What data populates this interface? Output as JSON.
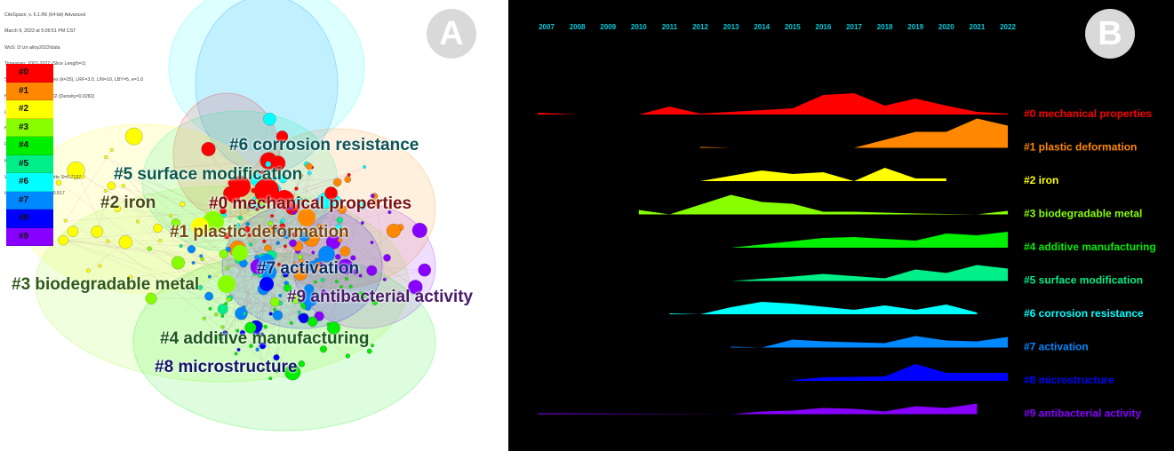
{
  "panel_a": {
    "badge": "A",
    "meta_lines": [
      "CiteSpace, v. 6.1.R6 (64-bit) Advanced",
      "March 9, 2023 at 5:06:51 PM CST",
      "WoS: D:\\zn alloy2022\\data",
      "Timespan: 2007-2022 (Slice Length=1)",
      "Selection Criteria: g-index (k=25), LRF=3.0, L/N=10, LBY=5, e=1.0",
      "Network: N=438, E=2702 (Density=0.0282)",
      "Largest CC: 437 (99%)",
      "Nodes Labeled: 1.0%",
      "Pruning: None",
      "Modularity Q=0.4063",
      "Weighted Mean Silhouette S=0.7137",
      "Harmonic Mean(Q, S)=0.517"
    ],
    "legend": [
      {
        "label": "#0",
        "color": "#ff0000"
      },
      {
        "label": "#1",
        "color": "#ff8800"
      },
      {
        "label": "#2",
        "color": "#ffff00"
      },
      {
        "label": "#3",
        "color": "#88ff00"
      },
      {
        "label": "#4",
        "color": "#00ee00"
      },
      {
        "label": "#5",
        "color": "#00ee88"
      },
      {
        "label": "#6",
        "color": "#00ffff"
      },
      {
        "label": "#7",
        "color": "#0088ff"
      },
      {
        "label": "#8",
        "color": "#0000ff"
      },
      {
        "label": "#9",
        "color": "#8800ff"
      }
    ],
    "cluster_labels": [
      {
        "text": "#6 corrosion resistance",
        "color": "#0b5458"
      },
      {
        "text": "#5 surface modification",
        "color": "#0a5a4a"
      },
      {
        "text": "#2 iron",
        "color": "#4a4a14"
      },
      {
        "text": "#0 mechanical properties",
        "color": "#7a1010"
      },
      {
        "text": "#1 plastic deformation",
        "color": "#7a4a10"
      },
      {
        "text": "#7 activation",
        "color": "#0a2e6a"
      },
      {
        "text": "#3 biodegradable metal",
        "color": "#2e5a14"
      },
      {
        "text": "#9 antibacterial activity",
        "color": "#4a1a6a"
      },
      {
        "text": "#4 additive manufacturing",
        "color": "#1a5a1a"
      },
      {
        "text": "#8 microstructure",
        "color": "#14146a"
      }
    ]
  },
  "panel_b": {
    "badge": "B",
    "years": [
      "2007",
      "2008",
      "2009",
      "2010",
      "2011",
      "2012",
      "2013",
      "2014",
      "2015",
      "2016",
      "2017",
      "2018",
      "2019",
      "2020",
      "2021",
      "2022"
    ],
    "axis_color": "#00ccdd",
    "clusters": [
      {
        "label": "#0 mechanical properties",
        "color": "#ff0000"
      },
      {
        "label": "#1 plastic deformation",
        "color": "#ff8800"
      },
      {
        "label": "#2 iron",
        "color": "#ffff00"
      },
      {
        "label": "#3 biodegradable metal",
        "color": "#88ff00"
      },
      {
        "label": "#4 additive manufacturing",
        "color": "#00ee00"
      },
      {
        "label": "#5 surface modification",
        "color": "#00ee88"
      },
      {
        "label": "#6 corrosion resistance",
        "color": "#00ffff"
      },
      {
        "label": "#7 activation",
        "color": "#0088ff"
      },
      {
        "label": "#8 microstructure",
        "color": "#0000ff"
      },
      {
        "label": "#9 antibacterial activity",
        "color": "#8800ff"
      }
    ]
  }
}
